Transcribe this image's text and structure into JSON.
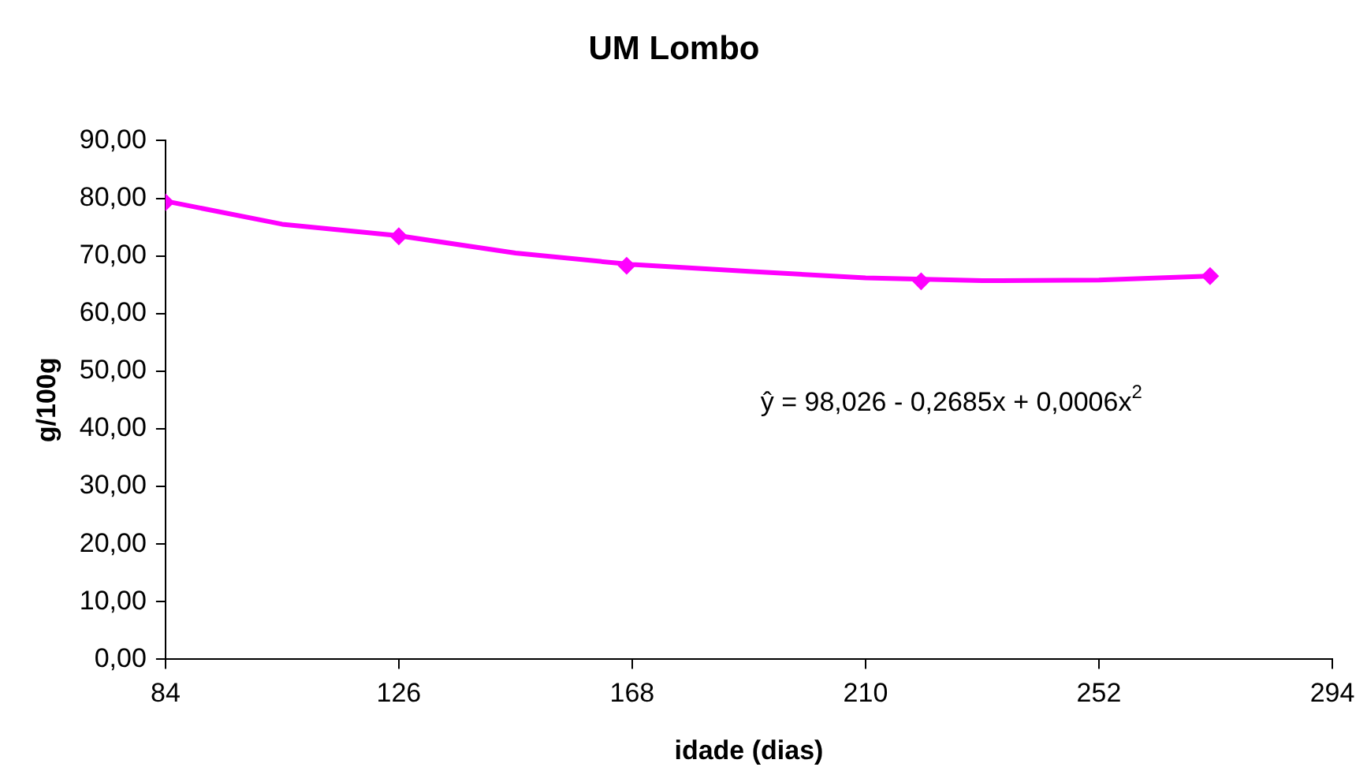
{
  "chart_data": {
    "type": "scatter",
    "title": "UM Lombo",
    "xlabel": "idade (dias)",
    "ylabel": "g/100g",
    "xlim": [
      84,
      294
    ],
    "xticks": [
      84,
      126,
      168,
      210,
      252,
      294
    ],
    "ylim": [
      0,
      90
    ],
    "yticks": [
      {
        "value": 0,
        "label": "0,00"
      },
      {
        "value": 10,
        "label": "10,00"
      },
      {
        "value": 20,
        "label": "20,00"
      },
      {
        "value": 30,
        "label": "30,00"
      },
      {
        "value": 40,
        "label": "40,00"
      },
      {
        "value": 50,
        "label": "50,00"
      },
      {
        "value": 60,
        "label": "60,00"
      },
      {
        "value": 70,
        "label": "70,00"
      },
      {
        "value": 80,
        "label": "80,00"
      },
      {
        "value": 90,
        "label": "90,00"
      }
    ],
    "grid": false,
    "legend": false,
    "annotations": [
      "ŷ = 98,026 - 0,2685x + 0,0006x$^{2}$"
    ],
    "series": [
      {
        "type": "scatter",
        "color": "#ff00ff",
        "marker": "diamond",
        "x": [
          84,
          126,
          167,
          220,
          272
        ],
        "values": [
          79.3,
          73.4,
          68.3,
          65.6,
          66.5
        ]
      },
      {
        "type": "line",
        "color": "#ff00ff",
        "marker": "none",
        "x": [
          84,
          105,
          126,
          147,
          168,
          189,
          210,
          231,
          252,
          272
        ],
        "values": [
          79.5,
          75.5,
          73.5,
          70.5,
          68.5,
          67.3,
          66.2,
          65.7,
          65.8,
          66.5
        ]
      }
    ]
  }
}
